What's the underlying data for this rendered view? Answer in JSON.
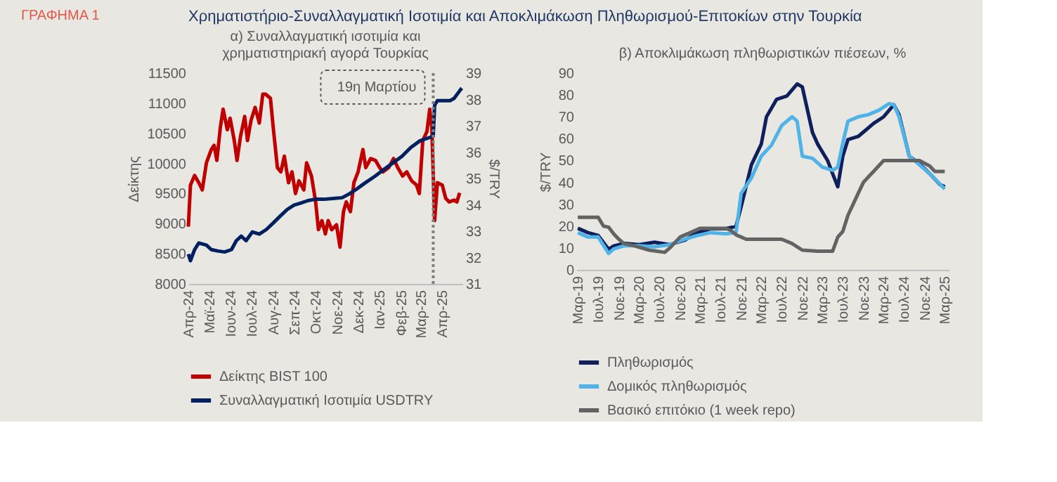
{
  "chart_data": [
    {
      "type": "line",
      "title": "α) Συναλλαγματική ισοτιμία και χρηματιστηριακή αγορά Τουρκίας",
      "ylabel": "Δείκτης",
      "y2label": "$/TRY",
      "annotations": [
        "ΓΡΑΦΗΜΑ 1",
        "Χρηματιστήριο-Συναλλαγματική Ισοτιμία και Αποκλιμάκωση Πληθωρισμού-Επιτοκίων στην Τουρκία"
      ],
      "xlim": [
        "2024-04-01",
        "2025-04-30"
      ],
      "xticks": [
        {
          "value": "2024-04-01",
          "label": "Απρ-24"
        },
        {
          "value": "2024-05-01",
          "label": "Μαϊ-24"
        },
        {
          "value": "2024-06-01",
          "label": "Ιουν-24"
        },
        {
          "value": "2024-07-01",
          "label": "Ιουλ-24"
        },
        {
          "value": "2024-08-01",
          "label": "Αυγ-24"
        },
        {
          "value": "2024-09-01",
          "label": "Σεπ-24"
        },
        {
          "value": "2024-10-01",
          "label": "Οκτ-24"
        },
        {
          "value": "2024-11-01",
          "label": "Νοε-24"
        },
        {
          "value": "2024-12-01",
          "label": "Δεκ-24"
        },
        {
          "value": "2025-01-01",
          "label": "Ιαν-25"
        },
        {
          "value": "2025-02-01",
          "label": "Φεβ-25"
        },
        {
          "value": "2025-03-01",
          "label": "Μαρ-25"
        },
        {
          "value": "2025-04-01",
          "label": "Απρ-25"
        }
      ],
      "ylim": [
        8000,
        11500
      ],
      "yticks": [
        8000,
        8500,
        9000,
        9500,
        10000,
        10500,
        11000,
        11500
      ],
      "y2lim": [
        31,
        39
      ],
      "y2ticks": [
        31,
        32,
        33,
        34,
        35,
        36,
        37,
        38,
        39
      ],
      "series": [
        {
          "name": "Δείκτης BIST 100",
          "color": "#c00000",
          "x": [
            "2024-04-01",
            "2024-04-04",
            "2024-04-10",
            "2024-04-16",
            "2024-04-21",
            "2024-04-27",
            "2024-05-04",
            "2024-05-08",
            "2024-05-12",
            "2024-05-17",
            "2024-05-21",
            "2024-05-27",
            "2024-05-31",
            "2024-06-06",
            "2024-06-10",
            "2024-06-15",
            "2024-06-21",
            "2024-06-25",
            "2024-06-30",
            "2024-07-06",
            "2024-07-12",
            "2024-07-17",
            "2024-07-21",
            "2024-07-28",
            "2024-08-01",
            "2024-08-07",
            "2024-08-12",
            "2024-08-17",
            "2024-08-23",
            "2024-08-28",
            "2024-09-02",
            "2024-09-07",
            "2024-09-14",
            "2024-09-18",
            "2024-09-25",
            "2024-10-01",
            "2024-10-05",
            "2024-10-10",
            "2024-10-15",
            "2024-10-19",
            "2024-10-24",
            "2024-10-31",
            "2024-11-05",
            "2024-11-10",
            "2024-11-14",
            "2024-11-20",
            "2024-11-25",
            "2024-12-01",
            "2024-12-08",
            "2024-12-12",
            "2024-12-19",
            "2024-12-26",
            "2025-01-01",
            "2025-01-06",
            "2025-01-14",
            "2025-01-21",
            "2025-01-27",
            "2025-02-03",
            "2025-02-09",
            "2025-02-16",
            "2025-02-23",
            "2025-02-27",
            "2025-03-04",
            "2025-03-10",
            "2025-03-14",
            "2025-03-17",
            "2025-03-21",
            "2025-03-25",
            "2025-04-01",
            "2025-04-06",
            "2025-04-11",
            "2025-04-18",
            "2025-04-22",
            "2025-04-26"
          ],
          "values": [
            8950,
            9640,
            9800,
            9680,
            9560,
            10010,
            10230,
            10300,
            10050,
            10600,
            10900,
            10560,
            10750,
            10380,
            10050,
            10450,
            10780,
            10380,
            10710,
            10930,
            10670,
            11150,
            11150,
            11080,
            10600,
            9930,
            9860,
            10120,
            9680,
            9860,
            9500,
            9710,
            9560,
            10010,
            9790,
            9360,
            8900,
            9050,
            8830,
            9050,
            8900,
            8980,
            8610,
            9200,
            9360,
            9200,
            9680,
            9860,
            10230,
            9930,
            10080,
            10050,
            9930,
            9860,
            9930,
            10080,
            9930,
            9790,
            9860,
            9710,
            9640,
            9500,
            10380,
            10530,
            10900,
            10600,
            9050,
            9680,
            9640,
            9420,
            9360,
            9390,
            9360,
            9510
          ]
        },
        {
          "name": "Συναλλαγματική Ισοτιμία USDTRY",
          "color": "#002060",
          "axis": "y2",
          "x": [
            "2024-04-01",
            "2024-04-04",
            "2024-04-10",
            "2024-04-16",
            "2024-04-27",
            "2024-05-04",
            "2024-05-13",
            "2024-05-23",
            "2024-06-02",
            "2024-06-09",
            "2024-06-16",
            "2024-06-23",
            "2024-07-02",
            "2024-07-12",
            "2024-07-22",
            "2024-08-01",
            "2024-08-11",
            "2024-08-21",
            "2024-08-31",
            "2024-09-10",
            "2024-09-20",
            "2024-09-30",
            "2024-10-13",
            "2024-10-26",
            "2024-11-08",
            "2024-11-18",
            "2024-11-28",
            "2024-12-11",
            "2024-12-25",
            "2025-01-07",
            "2025-01-20",
            "2025-02-02",
            "2025-02-15",
            "2025-02-28",
            "2025-03-10",
            "2025-03-19",
            "2025-03-21",
            "2025-03-25",
            "2025-04-02",
            "2025-04-12",
            "2025-04-18",
            "2025-04-25",
            "2025-04-29"
          ],
          "values": [
            32.13,
            31.88,
            32.3,
            32.55,
            32.47,
            32.3,
            32.25,
            32.21,
            32.3,
            32.64,
            32.81,
            32.64,
            32.97,
            32.89,
            33.06,
            33.31,
            33.57,
            33.82,
            33.99,
            34.07,
            34.16,
            34.21,
            34.21,
            34.24,
            34.27,
            34.41,
            34.58,
            34.83,
            35.08,
            35.34,
            35.59,
            35.84,
            36.18,
            36.43,
            36.52,
            36.6,
            37.78,
            37.95,
            37.95,
            37.95,
            38.04,
            38.29,
            38.43
          ]
        }
      ],
      "ref_lines": [
        {
          "axis": "x",
          "value": "2025-03-19",
          "label": "19η Μαρτίου",
          "color": "#808080",
          "line_style": "dotted"
        }
      ],
      "legend": "bottom",
      "grid": false,
      "marker": "none",
      "line_style": "solid"
    },
    {
      "type": "line",
      "title": "β) Αποκλιμάκωση πληθωριστικών πιέσεων, %",
      "ylabel": "$/TRY",
      "xlim": [
        "2019-02-20",
        "2025-03-25"
      ],
      "xticks": [
        {
          "value": "2019-03-01",
          "label": "Μαρ-19"
        },
        {
          "value": "2019-07-01",
          "label": "Ιουλ-19"
        },
        {
          "value": "2019-11-01",
          "label": "Νοε-19"
        },
        {
          "value": "2020-03-01",
          "label": "Μαρ-20"
        },
        {
          "value": "2020-07-01",
          "label": "Ιουλ-20"
        },
        {
          "value": "2020-11-01",
          "label": "Νοε-20"
        },
        {
          "value": "2021-03-01",
          "label": "Μαρ-21"
        },
        {
          "value": "2021-07-01",
          "label": "Ιουλ-21"
        },
        {
          "value": "2021-11-01",
          "label": "Νοε-21"
        },
        {
          "value": "2022-03-01",
          "label": "Μαρ-22"
        },
        {
          "value": "2022-07-01",
          "label": "Ιουλ-22"
        },
        {
          "value": "2022-11-01",
          "label": "Νοε-22"
        },
        {
          "value": "2023-03-01",
          "label": "Μαρ-23"
        },
        {
          "value": "2023-07-01",
          "label": "Ιουλ-23"
        },
        {
          "value": "2023-11-01",
          "label": "Νοε-23"
        },
        {
          "value": "2024-03-01",
          "label": "Μαρ-24"
        },
        {
          "value": "2024-07-01",
          "label": "Ιουλ-24"
        },
        {
          "value": "2024-11-01",
          "label": "Νοε-24"
        },
        {
          "value": "2025-03-01",
          "label": "Μαρ-25"
        }
      ],
      "ylim": [
        0,
        90
      ],
      "yticks": [
        0,
        10,
        20,
        30,
        40,
        50,
        60,
        70,
        80,
        90
      ],
      "series": [
        {
          "name": "Πληθωρισμός",
          "color": "#0f1f5c",
          "x": [
            "2019-03-01",
            "2019-05-01",
            "2019-07-01",
            "2019-09-01",
            "2019-10-01",
            "2019-12-01",
            "2020-03-01",
            "2020-06-01",
            "2020-09-01",
            "2020-12-01",
            "2021-02-01",
            "2021-05-01",
            "2021-08-01",
            "2021-10-01",
            "2021-11-01",
            "2022-01-01",
            "2022-03-01",
            "2022-04-01",
            "2022-06-01",
            "2022-08-01",
            "2022-10-01",
            "2022-11-01",
            "2023-01-01",
            "2023-02-01",
            "2023-04-01",
            "2023-05-01",
            "2023-06-01",
            "2023-07-01",
            "2023-08-01",
            "2023-10-01",
            "2023-11-01",
            "2024-01-01",
            "2024-03-01",
            "2024-05-01",
            "2024-06-01",
            "2024-08-01",
            "2024-10-01",
            "2024-12-01",
            "2025-02-01",
            "2025-03-01"
          ],
          "values": [
            19,
            17,
            15.7,
            9.4,
            10.9,
            12.1,
            11.5,
            12.6,
            11.5,
            13.6,
            16.7,
            18.8,
            18.8,
            19.9,
            29,
            48,
            57.5,
            70,
            78,
            79.5,
            85,
            83.7,
            62.8,
            57.5,
            50,
            44,
            38,
            52,
            59.6,
            61,
            63,
            67,
            70,
            75.5,
            71,
            52,
            48.5,
            44,
            39,
            38
          ]
        },
        {
          "name": "Δομικός πληθωρισμός",
          "color": "#4fb3e8",
          "x": [
            "2019-03-01",
            "2019-05-01",
            "2019-07-01",
            "2019-09-01",
            "2019-10-01",
            "2019-12-01",
            "2020-03-01",
            "2020-06-01",
            "2020-09-01",
            "2020-12-01",
            "2021-02-01",
            "2021-05-01",
            "2021-08-01",
            "2021-10-01",
            "2021-11-01",
            "2022-01-01",
            "2022-03-01",
            "2022-05-01",
            "2022-07-01",
            "2022-09-01",
            "2022-10-01",
            "2022-11-01",
            "2023-01-01",
            "2023-03-01",
            "2023-05-01",
            "2023-06-01",
            "2023-07-01",
            "2023-08-01",
            "2023-10-01",
            "2023-12-01",
            "2024-02-01",
            "2024-04-01",
            "2024-05-01",
            "2024-06-01",
            "2024-08-01",
            "2024-10-01",
            "2024-12-01",
            "2025-03-01"
          ],
          "values": [
            17,
            15,
            15,
            7.5,
            9.5,
            11,
            11,
            10.5,
            11.5,
            14,
            15.5,
            17,
            16.5,
            17,
            35,
            42,
            52,
            57,
            66,
            70,
            68,
            52,
            51,
            47,
            45.5,
            47,
            58,
            68,
            70,
            71,
            73,
            76,
            75.5,
            70,
            52,
            48,
            44,
            37
          ]
        },
        {
          "name": "Βασικό επιτόκιο (1 week repo)",
          "color": "#636363",
          "x": [
            "2019-03-01",
            "2019-07-01",
            "2019-08-01",
            "2019-09-01",
            "2019-10-01",
            "2019-11-01",
            "2019-12-01",
            "2020-02-01",
            "2020-05-01",
            "2020-08-01",
            "2020-09-01",
            "2020-11-01",
            "2021-01-01",
            "2021-03-01",
            "2021-08-01",
            "2021-09-01",
            "2021-10-01",
            "2021-11-01",
            "2021-12-01",
            "2022-07-01",
            "2022-09-01",
            "2022-11-01",
            "2023-02-01",
            "2023-05-01",
            "2023-06-01",
            "2023-07-01",
            "2023-08-01",
            "2023-09-01",
            "2023-10-01",
            "2023-11-01",
            "2023-12-01",
            "2024-01-01",
            "2024-03-01",
            "2024-10-01",
            "2024-12-01",
            "2025-01-01",
            "2025-03-01"
          ],
          "values": [
            24,
            24,
            20,
            19.5,
            16.5,
            14,
            12,
            11,
            9,
            8,
            10,
            15,
            17,
            19,
            19,
            18,
            16,
            15,
            14,
            14,
            12,
            9,
            8.5,
            8.5,
            15,
            17.5,
            25,
            30,
            35,
            40,
            42.5,
            45,
            50,
            50,
            47.5,
            45,
            45
          ]
        }
      ],
      "legend": "bottom",
      "grid": false,
      "marker": "none",
      "line_style": "solid"
    }
  ]
}
